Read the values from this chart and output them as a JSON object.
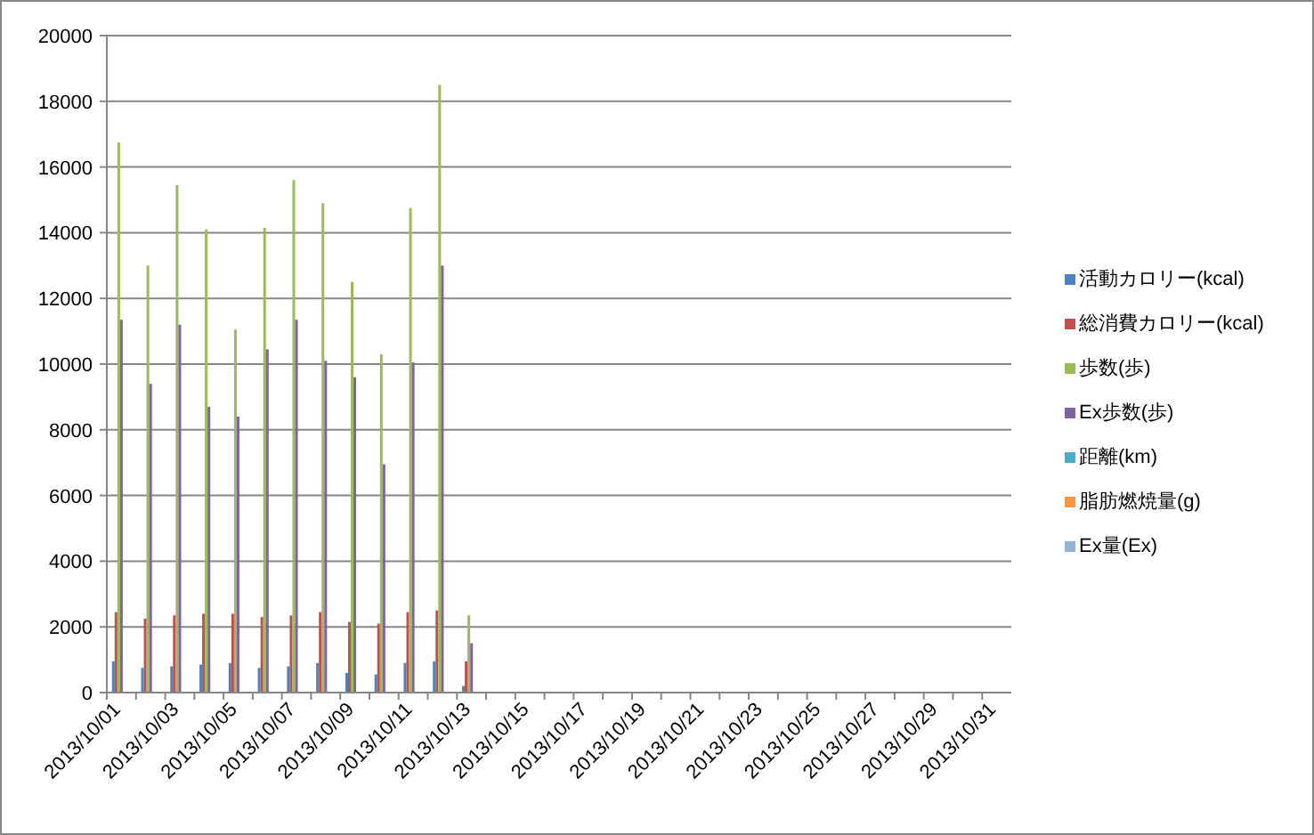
{
  "chart_data": {
    "type": "bar",
    "categories": [
      "2013/10/01",
      null,
      "2013/10/03",
      null,
      "2013/10/05",
      null,
      "2013/10/07",
      null,
      "2013/10/09",
      null,
      "2013/10/11",
      null,
      "2013/10/13",
      null,
      "2013/10/15",
      null,
      "2013/10/17",
      null,
      "2013/10/19",
      null,
      "2013/10/21",
      null,
      "2013/10/23",
      null,
      "2013/10/25",
      null,
      "2013/10/27",
      null,
      "2013/10/29",
      null,
      "2013/10/31"
    ],
    "series": [
      {
        "name": "活動カロリー(kcal)",
        "color": "#4f81bd",
        "values": [
          950,
          750,
          800,
          850,
          900,
          750,
          800,
          900,
          600,
          550,
          900,
          950,
          200,
          null,
          null,
          null,
          null,
          null,
          null,
          null,
          null,
          null,
          null,
          null,
          null,
          null,
          null,
          null,
          null,
          null,
          null
        ]
      },
      {
        "name": "総消費カロリー(kcal)",
        "color": "#c0504d",
        "values": [
          2450,
          2250,
          2350,
          2400,
          2400,
          2300,
          2350,
          2450,
          2150,
          2100,
          2450,
          2500,
          950,
          null,
          null,
          null,
          null,
          null,
          null,
          null,
          null,
          null,
          null,
          null,
          null,
          null,
          null,
          null,
          null,
          null,
          null
        ]
      },
      {
        "name": "歩数(歩)",
        "color": "#9bbb59",
        "values": [
          16750,
          13000,
          15450,
          14100,
          11050,
          14150,
          15600,
          14900,
          12500,
          10300,
          14750,
          18500,
          2350,
          null,
          null,
          null,
          null,
          null,
          null,
          null,
          null,
          null,
          null,
          null,
          null,
          null,
          null,
          null,
          null,
          null,
          null
        ]
      },
      {
        "name": "Ex歩数(歩)",
        "color": "#8064a2",
        "values": [
          11350,
          9400,
          11200,
          8700,
          8400,
          10450,
          11350,
          10100,
          9600,
          6950,
          10050,
          13000,
          1500,
          null,
          null,
          null,
          null,
          null,
          null,
          null,
          null,
          null,
          null,
          null,
          null,
          null,
          null,
          null,
          null,
          null,
          null
        ]
      },
      {
        "name": "距離(km)",
        "color": "#4bacc6",
        "values": [
          0,
          0,
          0,
          0,
          0,
          0,
          0,
          0,
          0,
          0,
          0,
          0,
          0,
          null,
          null,
          null,
          null,
          null,
          null,
          null,
          null,
          null,
          null,
          null,
          null,
          null,
          null,
          null,
          null,
          null,
          null
        ]
      },
      {
        "name": "脂肪燃焼量(g)",
        "color": "#f79646",
        "values": [
          0,
          0,
          0,
          0,
          0,
          0,
          0,
          0,
          0,
          0,
          0,
          0,
          0,
          null,
          null,
          null,
          null,
          null,
          null,
          null,
          null,
          null,
          null,
          null,
          null,
          null,
          null,
          null,
          null,
          null,
          null
        ]
      },
      {
        "name": "Ex量(Ex)",
        "color": "#95b3d7",
        "values": [
          0,
          0,
          0,
          0,
          0,
          0,
          0,
          0,
          0,
          0,
          0,
          0,
          0,
          null,
          null,
          null,
          null,
          null,
          null,
          null,
          null,
          null,
          null,
          null,
          null,
          null,
          null,
          null,
          null,
          null,
          null
        ]
      }
    ],
    "ylim": [
      0,
      20000
    ],
    "yticks": [
      0,
      2000,
      4000,
      6000,
      8000,
      10000,
      12000,
      14000,
      16000,
      18000,
      20000
    ],
    "grid": "y",
    "legend": "right"
  }
}
